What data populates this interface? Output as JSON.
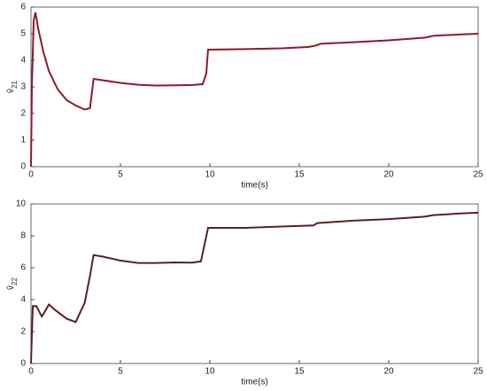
{
  "chart_data": [
    {
      "type": "line",
      "xlabel": "time(s)",
      "ylabel": "v̂",
      "ylabel_sub": "21",
      "xlim": [
        0,
        25
      ],
      "ylim": [
        0,
        6
      ],
      "xticks": [
        0,
        5,
        10,
        15,
        20,
        25
      ],
      "yticks": [
        0,
        1,
        2,
        3,
        4,
        5,
        6
      ],
      "series": [
        {
          "color": "#8b1a2b",
          "x": [
            0,
            0.05,
            0.15,
            0.25,
            0.4,
            0.7,
            1,
            1.5,
            2,
            2.5,
            3,
            3.3,
            3.5,
            4,
            5,
            6,
            7,
            8,
            9,
            9.6,
            9.8,
            9.9,
            12,
            14,
            15.5,
            15.9,
            16.2,
            18,
            20,
            22,
            22.5,
            24,
            25
          ],
          "values": [
            0,
            3,
            5.5,
            5.8,
            5.2,
            4.3,
            3.6,
            2.9,
            2.5,
            2.3,
            2.15,
            2.2,
            3.3,
            3.25,
            3.15,
            3.08,
            3.05,
            3.06,
            3.07,
            3.1,
            3.5,
            4.4,
            4.42,
            4.45,
            4.5,
            4.55,
            4.62,
            4.68,
            4.75,
            4.85,
            4.92,
            4.97,
            5.0
          ]
        }
      ]
    },
    {
      "type": "line",
      "xlabel": "time(s)",
      "ylabel": "v̂",
      "ylabel_sub": "22",
      "xlim": [
        0,
        25
      ],
      "ylim": [
        0,
        10
      ],
      "xticks": [
        0,
        5,
        10,
        15,
        20,
        25
      ],
      "yticks": [
        0,
        2,
        4,
        6,
        8,
        10
      ],
      "series": [
        {
          "color": "#5a2020",
          "x": [
            0,
            0.1,
            0.3,
            0.6,
            0.8,
            1,
            1.3,
            2,
            2.5,
            3,
            3.3,
            3.5,
            4,
            5,
            6,
            7,
            8,
            9,
            9.5,
            9.9,
            12,
            14,
            15.8,
            16,
            18,
            20,
            22,
            22.5,
            24,
            25
          ],
          "values": [
            0,
            3.6,
            3.6,
            2.95,
            3.3,
            3.7,
            3.4,
            2.8,
            2.6,
            3.8,
            5.5,
            6.8,
            6.7,
            6.45,
            6.3,
            6.3,
            6.33,
            6.32,
            6.4,
            8.5,
            8.5,
            8.58,
            8.65,
            8.8,
            8.95,
            9.05,
            9.2,
            9.3,
            9.4,
            9.45
          ]
        }
      ]
    }
  ]
}
